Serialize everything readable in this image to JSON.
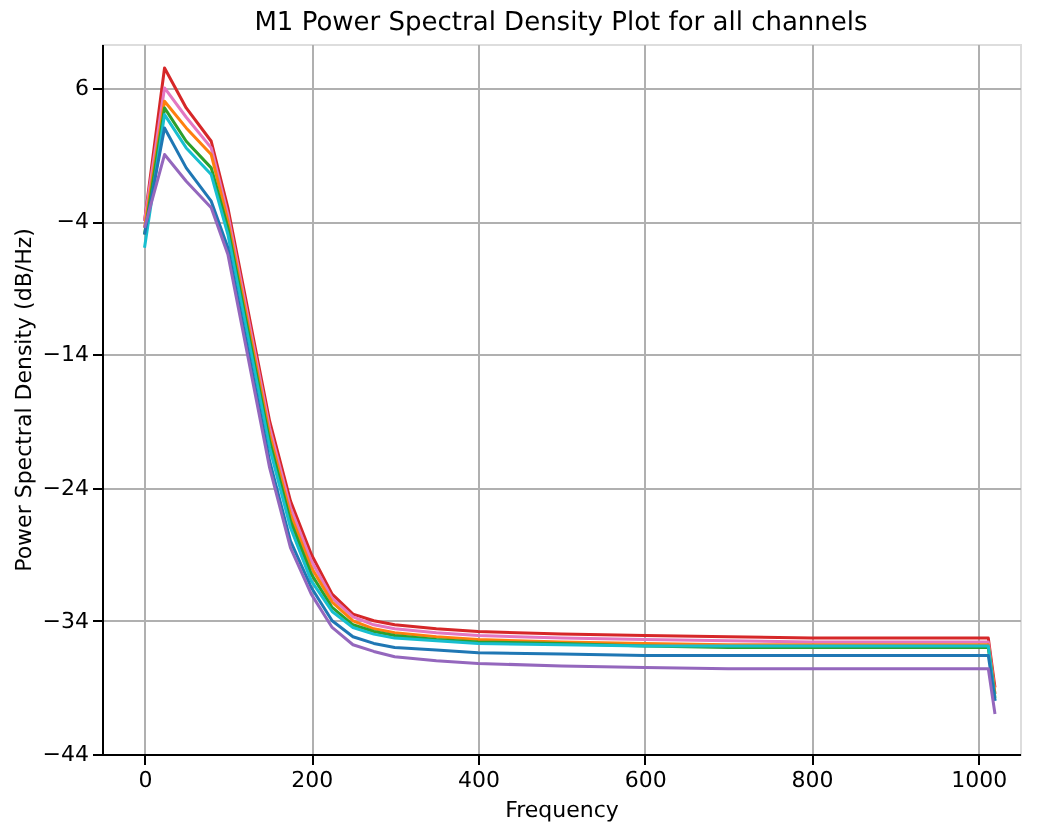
{
  "chart_data": {
    "type": "line",
    "title": "M1 Power Spectral Density Plot for all channels",
    "xlabel": "Frequency",
    "ylabel": "Power Spectral Density (dB/Hz)",
    "x": [
      0,
      24,
      50,
      80,
      100,
      125,
      150,
      175,
      200,
      225,
      250,
      275,
      300,
      350,
      400,
      500,
      600,
      700,
      800,
      900,
      1000,
      1012,
      1020
    ],
    "series": [
      {
        "color": "#d62728",
        "values": [
          -4,
          7.5,
          4.5,
          2,
          -3,
          -11,
          -19,
          -25,
          -29,
          -32,
          -33.5,
          -34,
          -34.3,
          -34.6,
          -34.8,
          -35,
          -35.1,
          -35.2,
          -35.3,
          -35.3,
          -35.3,
          -35.3,
          -39
        ]
      },
      {
        "color": "#e377c2",
        "values": [
          -4,
          6,
          3.8,
          1.5,
          -3.5,
          -11.5,
          -19.5,
          -25.5,
          -29.5,
          -32.3,
          -33.7,
          -34.3,
          -34.6,
          -34.9,
          -35.1,
          -35.3,
          -35.4,
          -35.5,
          -35.6,
          -35.6,
          -35.6,
          -35.6,
          -39.5
        ]
      },
      {
        "color": "#ff7f0e",
        "values": [
          -4.5,
          5,
          3,
          1,
          -4,
          -12,
          -20,
          -26,
          -30,
          -32.6,
          -34,
          -34.6,
          -34.9,
          -35.2,
          -35.4,
          -35.6,
          -35.7,
          -35.8,
          -35.8,
          -35.8,
          -35.8,
          -35.8,
          -39.5
        ]
      },
      {
        "color": "#2ca02c",
        "values": [
          -5,
          4.5,
          2,
          0,
          -4.5,
          -12.5,
          -20.5,
          -26.5,
          -30.5,
          -33,
          -34.3,
          -34.8,
          -35.1,
          -35.4,
          -35.6,
          -35.7,
          -35.9,
          -36,
          -36,
          -36,
          -36,
          -36,
          -39.8
        ]
      },
      {
        "color": "#17becf",
        "values": [
          -6,
          4,
          1.5,
          -0.5,
          -5,
          -13,
          -21,
          -27,
          -31,
          -33.3,
          -34.5,
          -35,
          -35.3,
          -35.5,
          -35.7,
          -35.8,
          -35.9,
          -35.9,
          -35.9,
          -35.9,
          -35.9,
          -35.9,
          -40
        ]
      },
      {
        "color": "#1f77b4",
        "values": [
          -5,
          3,
          0,
          -2.5,
          -6,
          -14,
          -22,
          -28,
          -31.5,
          -34,
          -35.2,
          -35.7,
          -36,
          -36.2,
          -36.4,
          -36.5,
          -36.6,
          -36.6,
          -36.6,
          -36.6,
          -36.6,
          -36.6,
          -40
        ]
      },
      {
        "color": "#9467bd",
        "values": [
          -4.5,
          1,
          -1,
          -3,
          -6.5,
          -14.5,
          -22.5,
          -28.5,
          -32,
          -34.5,
          -35.8,
          -36.3,
          -36.7,
          -37,
          -37.2,
          -37.4,
          -37.5,
          -37.6,
          -37.6,
          -37.6,
          -37.6,
          -37.6,
          -41
        ]
      }
    ],
    "xlim": [
      -51,
      1050
    ],
    "ylim": [
      -44,
      9.3
    ],
    "xticks": [
      0,
      200,
      400,
      600,
      800,
      1000
    ],
    "yticks": [
      -44,
      -34,
      -24,
      -14,
      -4,
      6
    ],
    "grid": true
  }
}
